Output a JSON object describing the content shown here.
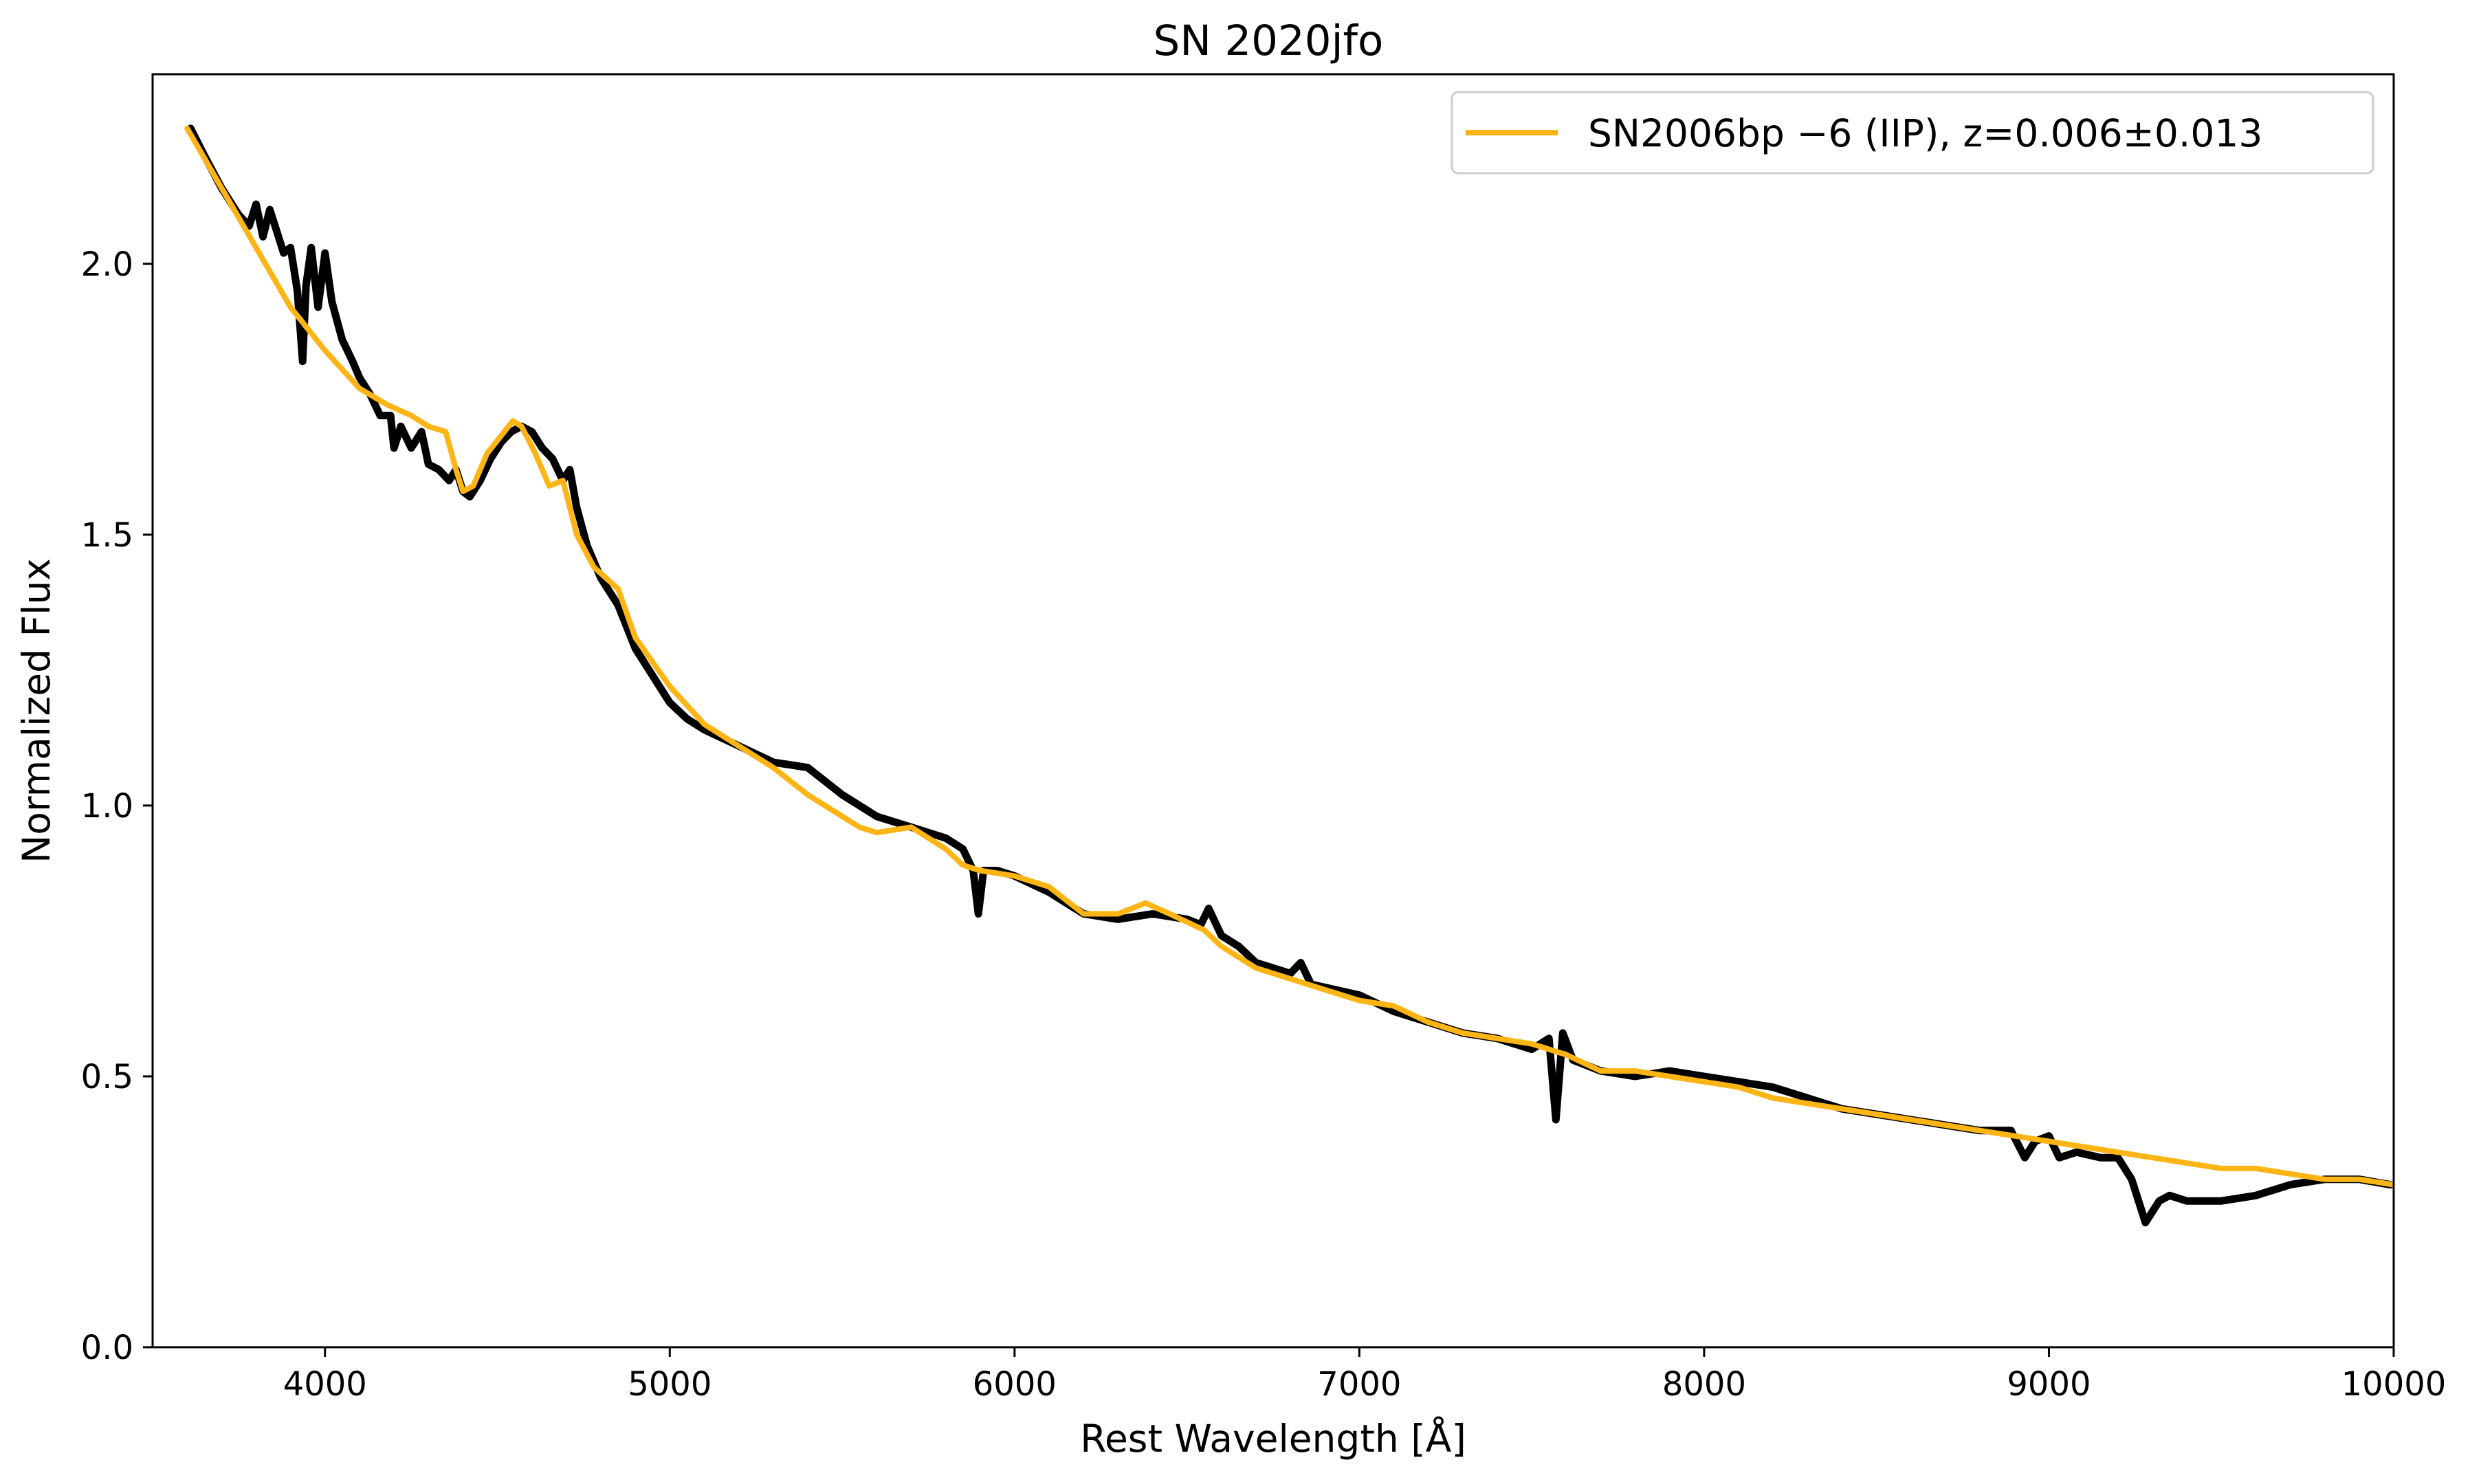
{
  "chart_data": {
    "type": "line",
    "title": "SN 2020jfo",
    "xlabel": "Rest Wavelength [Å]",
    "ylabel": "Normalized Flux",
    "xlim": [
      3500,
      10000
    ],
    "ylim": [
      0.0,
      2.35
    ],
    "x_ticks": [
      4000,
      5000,
      6000,
      7000,
      8000,
      9000,
      10000
    ],
    "x_tick_labels": [
      "4000",
      "5000",
      "6000",
      "7000",
      "8000",
      "9000",
      "10000"
    ],
    "y_ticks": [
      0.0,
      0.5,
      1.0,
      1.5,
      2.0
    ],
    "y_tick_labels": [
      "0.0",
      "0.5",
      "1.0",
      "1.5",
      "2.0"
    ],
    "grid": false,
    "legend_position": "top-right",
    "legend": [
      {
        "label": "SN2006bp −6 (IIP), z=0.006±0.013",
        "color": "#fdb515"
      }
    ],
    "series": [
      {
        "color": "#000000",
        "points": [
          [
            3610,
            2.25
          ],
          [
            3650,
            2.2
          ],
          [
            3700,
            2.14
          ],
          [
            3750,
            2.09
          ],
          [
            3780,
            2.07
          ],
          [
            3800,
            2.11
          ],
          [
            3820,
            2.05
          ],
          [
            3840,
            2.1
          ],
          [
            3860,
            2.06
          ],
          [
            3880,
            2.02
          ],
          [
            3900,
            2.03
          ],
          [
            3920,
            1.95
          ],
          [
            3935,
            1.82
          ],
          [
            3945,
            1.96
          ],
          [
            3960,
            2.03
          ],
          [
            3980,
            1.92
          ],
          [
            4000,
            2.02
          ],
          [
            4020,
            1.93
          ],
          [
            4050,
            1.86
          ],
          [
            4080,
            1.82
          ],
          [
            4100,
            1.79
          ],
          [
            4130,
            1.76
          ],
          [
            4160,
            1.72
          ],
          [
            4190,
            1.72
          ],
          [
            4200,
            1.66
          ],
          [
            4220,
            1.7
          ],
          [
            4250,
            1.66
          ],
          [
            4280,
            1.69
          ],
          [
            4300,
            1.63
          ],
          [
            4330,
            1.62
          ],
          [
            4360,
            1.6
          ],
          [
            4380,
            1.62
          ],
          [
            4400,
            1.58
          ],
          [
            4420,
            1.57
          ],
          [
            4450,
            1.6
          ],
          [
            4480,
            1.64
          ],
          [
            4510,
            1.67
          ],
          [
            4540,
            1.69
          ],
          [
            4570,
            1.7
          ],
          [
            4600,
            1.69
          ],
          [
            4630,
            1.66
          ],
          [
            4660,
            1.64
          ],
          [
            4690,
            1.6
          ],
          [
            4710,
            1.62
          ],
          [
            4730,
            1.55
          ],
          [
            4760,
            1.48
          ],
          [
            4800,
            1.42
          ],
          [
            4850,
            1.37
          ],
          [
            4900,
            1.29
          ],
          [
            4950,
            1.24
          ],
          [
            5000,
            1.19
          ],
          [
            5050,
            1.16
          ],
          [
            5100,
            1.14
          ],
          [
            5200,
            1.11
          ],
          [
            5300,
            1.08
          ],
          [
            5400,
            1.07
          ],
          [
            5500,
            1.02
          ],
          [
            5600,
            0.98
          ],
          [
            5700,
            0.96
          ],
          [
            5800,
            0.94
          ],
          [
            5850,
            0.92
          ],
          [
            5880,
            0.88
          ],
          [
            5895,
            0.8
          ],
          [
            5910,
            0.88
          ],
          [
            5950,
            0.88
          ],
          [
            6000,
            0.87
          ],
          [
            6100,
            0.84
          ],
          [
            6200,
            0.8
          ],
          [
            6300,
            0.79
          ],
          [
            6400,
            0.8
          ],
          [
            6500,
            0.79
          ],
          [
            6540,
            0.78
          ],
          [
            6563,
            0.81
          ],
          [
            6600,
            0.76
          ],
          [
            6650,
            0.74
          ],
          [
            6700,
            0.71
          ],
          [
            6800,
            0.69
          ],
          [
            6830,
            0.71
          ],
          [
            6860,
            0.67
          ],
          [
            7000,
            0.65
          ],
          [
            7100,
            0.62
          ],
          [
            7200,
            0.6
          ],
          [
            7300,
            0.58
          ],
          [
            7400,
            0.57
          ],
          [
            7500,
            0.55
          ],
          [
            7550,
            0.57
          ],
          [
            7570,
            0.42
          ],
          [
            7590,
            0.58
          ],
          [
            7620,
            0.53
          ],
          [
            7700,
            0.51
          ],
          [
            7800,
            0.5
          ],
          [
            7900,
            0.51
          ],
          [
            8000,
            0.5
          ],
          [
            8100,
            0.49
          ],
          [
            8200,
            0.48
          ],
          [
            8300,
            0.46
          ],
          [
            8400,
            0.44
          ],
          [
            8500,
            0.43
          ],
          [
            8600,
            0.42
          ],
          [
            8700,
            0.41
          ],
          [
            8800,
            0.4
          ],
          [
            8890,
            0.4
          ],
          [
            8930,
            0.35
          ],
          [
            8960,
            0.38
          ],
          [
            9000,
            0.39
          ],
          [
            9030,
            0.35
          ],
          [
            9080,
            0.36
          ],
          [
            9150,
            0.35
          ],
          [
            9200,
            0.35
          ],
          [
            9240,
            0.31
          ],
          [
            9280,
            0.23
          ],
          [
            9300,
            0.25
          ],
          [
            9320,
            0.27
          ],
          [
            9350,
            0.28
          ],
          [
            9400,
            0.27
          ],
          [
            9500,
            0.27
          ],
          [
            9600,
            0.28
          ],
          [
            9700,
            0.3
          ],
          [
            9800,
            0.31
          ],
          [
            9900,
            0.31
          ],
          [
            9990,
            0.3
          ]
        ]
      },
      {
        "name": "SN2006bp −6 (IIP), z=0.006±0.013",
        "color": "#fdb515",
        "points": [
          [
            3600,
            2.25
          ],
          [
            3700,
            2.14
          ],
          [
            3800,
            2.03
          ],
          [
            3900,
            1.92
          ],
          [
            4000,
            1.84
          ],
          [
            4100,
            1.77
          ],
          [
            4180,
            1.74
          ],
          [
            4250,
            1.72
          ],
          [
            4300,
            1.7
          ],
          [
            4350,
            1.69
          ],
          [
            4380,
            1.62
          ],
          [
            4400,
            1.58
          ],
          [
            4430,
            1.59
          ],
          [
            4470,
            1.65
          ],
          [
            4520,
            1.69
          ],
          [
            4545,
            1.71
          ],
          [
            4570,
            1.7
          ],
          [
            4610,
            1.65
          ],
          [
            4650,
            1.59
          ],
          [
            4690,
            1.6
          ],
          [
            4730,
            1.5
          ],
          [
            4780,
            1.44
          ],
          [
            4850,
            1.4
          ],
          [
            4900,
            1.31
          ],
          [
            5000,
            1.22
          ],
          [
            5100,
            1.15
          ],
          [
            5200,
            1.11
          ],
          [
            5300,
            1.07
          ],
          [
            5400,
            1.02
          ],
          [
            5500,
            0.98
          ],
          [
            5550,
            0.96
          ],
          [
            5600,
            0.95
          ],
          [
            5700,
            0.96
          ],
          [
            5800,
            0.92
          ],
          [
            5850,
            0.89
          ],
          [
            5900,
            0.88
          ],
          [
            6000,
            0.87
          ],
          [
            6100,
            0.85
          ],
          [
            6200,
            0.8
          ],
          [
            6300,
            0.8
          ],
          [
            6380,
            0.82
          ],
          [
            6450,
            0.8
          ],
          [
            6550,
            0.77
          ],
          [
            6600,
            0.74
          ],
          [
            6700,
            0.7
          ],
          [
            6800,
            0.68
          ],
          [
            6900,
            0.66
          ],
          [
            7000,
            0.64
          ],
          [
            7100,
            0.63
          ],
          [
            7200,
            0.6
          ],
          [
            7300,
            0.58
          ],
          [
            7400,
            0.57
          ],
          [
            7500,
            0.56
          ],
          [
            7600,
            0.54
          ],
          [
            7700,
            0.51
          ],
          [
            7800,
            0.51
          ],
          [
            7900,
            0.5
          ],
          [
            8000,
            0.49
          ],
          [
            8100,
            0.48
          ],
          [
            8200,
            0.46
          ],
          [
            8300,
            0.45
          ],
          [
            8400,
            0.44
          ],
          [
            8500,
            0.43
          ],
          [
            8600,
            0.42
          ],
          [
            8700,
            0.41
          ],
          [
            8800,
            0.4
          ],
          [
            8900,
            0.39
          ],
          [
            9000,
            0.38
          ],
          [
            9100,
            0.37
          ],
          [
            9200,
            0.36
          ],
          [
            9300,
            0.35
          ],
          [
            9400,
            0.34
          ],
          [
            9500,
            0.33
          ],
          [
            9600,
            0.33
          ],
          [
            9700,
            0.32
          ],
          [
            9800,
            0.31
          ],
          [
            9900,
            0.31
          ],
          [
            10000,
            0.3
          ]
        ]
      }
    ]
  }
}
